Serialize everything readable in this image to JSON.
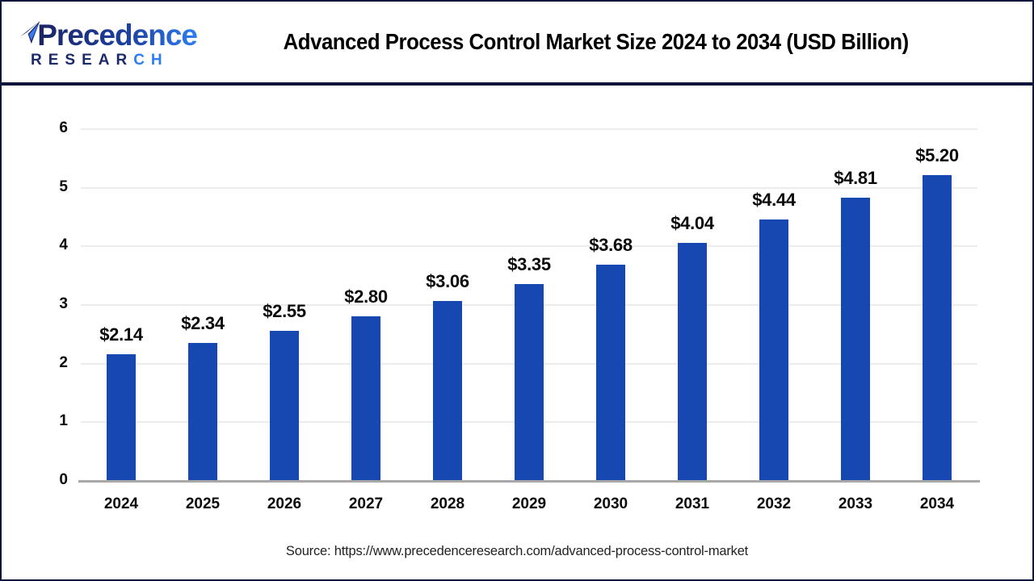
{
  "header": {
    "logo": {
      "brand_top": "Precedence",
      "brand_bottom_main": "RESEAR",
      "brand_bottom_accent": "CH"
    },
    "title": "Advanced Process Control Market Size 2024 to 2034 (USD Billion)"
  },
  "footer": {
    "source": "Source: https://www.precedenceresearch.com/advanced-process-control-market"
  },
  "colors": {
    "bar": "#1747b0",
    "navy_border": "#10153c",
    "logo_navy": "#1b2a6b",
    "logo_accent_blue": "#2e7ef0",
    "gridline": "#ececec",
    "axis_line": "#a8a8a8",
    "text": "#0a0a0a"
  },
  "chart_data": {
    "type": "bar",
    "title": "Advanced Process Control Market Size 2024 to 2034 (USD Billion)",
    "categories": [
      "2024",
      "2025",
      "2026",
      "2027",
      "2028",
      "2029",
      "2030",
      "2031",
      "2032",
      "2033",
      "2034"
    ],
    "values": [
      2.14,
      2.34,
      2.55,
      2.8,
      3.06,
      3.35,
      3.68,
      4.04,
      4.44,
      4.81,
      5.2
    ],
    "value_labels": [
      "$2.14",
      "$2.34",
      "$2.55",
      "$2.80",
      "$3.06",
      "$3.35",
      "$3.68",
      "$4.04",
      "$4.44",
      "$4.81",
      "$5.20"
    ],
    "xlabel": "",
    "ylabel": "",
    "ylim": [
      0,
      6
    ],
    "yticks": [
      0,
      1,
      2,
      3,
      4,
      5,
      6
    ],
    "grid": true,
    "legend": "none",
    "unit": "USD Billion"
  }
}
